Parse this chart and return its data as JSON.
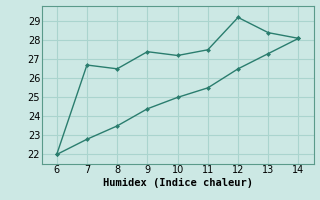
{
  "line1_x": [
    6,
    7,
    8,
    9,
    10,
    11,
    12,
    13,
    14
  ],
  "line1_y": [
    22,
    26.7,
    26.5,
    27.4,
    27.2,
    27.5,
    29.2,
    28.4,
    28.1
  ],
  "line2_x": [
    6,
    7,
    8,
    9,
    10,
    11,
    12,
    13,
    14
  ],
  "line2_y": [
    22,
    22.8,
    23.5,
    24.4,
    25.0,
    25.5,
    26.5,
    27.3,
    28.1
  ],
  "line_color": "#2a7d6e",
  "bg_color": "#cce8e4",
  "grid_color": "#aad4ce",
  "xlabel": "Humidex (Indice chaleur)",
  "xlim": [
    5.5,
    14.5
  ],
  "ylim": [
    21.5,
    29.8
  ],
  "xticks": [
    6,
    7,
    8,
    9,
    10,
    11,
    12,
    13,
    14
  ],
  "yticks": [
    22,
    23,
    24,
    25,
    26,
    27,
    28,
    29
  ],
  "xlabel_fontsize": 7.5,
  "tick_fontsize": 7
}
